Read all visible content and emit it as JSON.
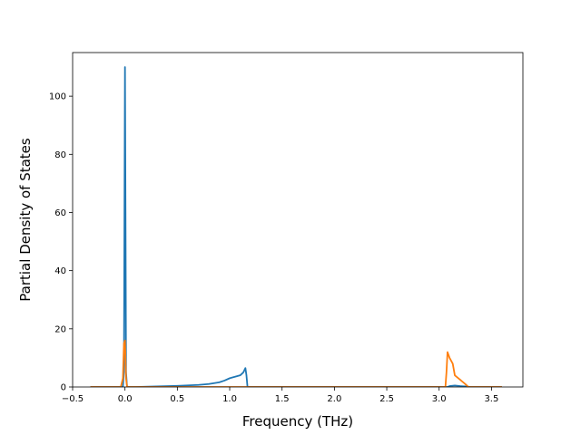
{
  "chart_data": {
    "type": "line",
    "title": "",
    "xlabel": "Frequency (THz)",
    "ylabel": "Partial Density of States",
    "xlim": [
      -0.5,
      3.8
    ],
    "ylim": [
      0,
      115
    ],
    "xticks": [
      -0.5,
      0.0,
      0.5,
      1.0,
      1.5,
      2.0,
      2.5,
      3.0,
      3.5
    ],
    "xtick_labels": [
      "−0.5",
      "0.0",
      "0.5",
      "1.0",
      "1.5",
      "2.0",
      "2.5",
      "3.0",
      "3.5"
    ],
    "yticks": [
      0,
      20,
      40,
      60,
      80,
      100
    ],
    "ytick_labels": [
      "0",
      "20",
      "40",
      "60",
      "80",
      "100"
    ],
    "grid": false,
    "legend": "none",
    "series": [
      {
        "color": "#1f77b4",
        "x": [
          -0.33,
          -0.02,
          -0.01,
          0.0,
          0.005,
          0.01,
          0.02,
          0.03,
          0.1,
          0.3,
          0.5,
          0.7,
          0.8,
          0.9,
          0.95,
          1.0,
          1.05,
          1.1,
          1.13,
          1.15,
          1.16,
          1.17,
          1.25,
          2.0,
          3.0,
          3.08,
          3.1,
          3.15,
          3.2,
          3.25,
          3.3,
          3.6
        ],
        "y": [
          0,
          0,
          5,
          110,
          60,
          5,
          0,
          0,
          0,
          0.2,
          0.4,
          0.7,
          1.0,
          1.6,
          2.2,
          3.0,
          3.5,
          4.0,
          5.0,
          6.5,
          4.0,
          0,
          0,
          0,
          0,
          0,
          0.3,
          0.5,
          0.3,
          0.2,
          0,
          0
        ]
      },
      {
        "color": "#ff7f0e",
        "x": [
          -0.33,
          -0.04,
          -0.02,
          -0.01,
          0.0,
          0.01,
          0.02,
          0.03,
          0.04,
          0.5,
          1.0,
          2.0,
          3.0,
          3.06,
          3.07,
          3.08,
          3.1,
          3.13,
          3.15,
          3.2,
          3.25,
          3.28,
          3.3,
          3.6
        ],
        "y": [
          0,
          0,
          3,
          15,
          16,
          3,
          0,
          0,
          0,
          0,
          0,
          0,
          0,
          0,
          5,
          12,
          10,
          8,
          4,
          2.5,
          1.0,
          0,
          0,
          0
        ]
      }
    ]
  }
}
